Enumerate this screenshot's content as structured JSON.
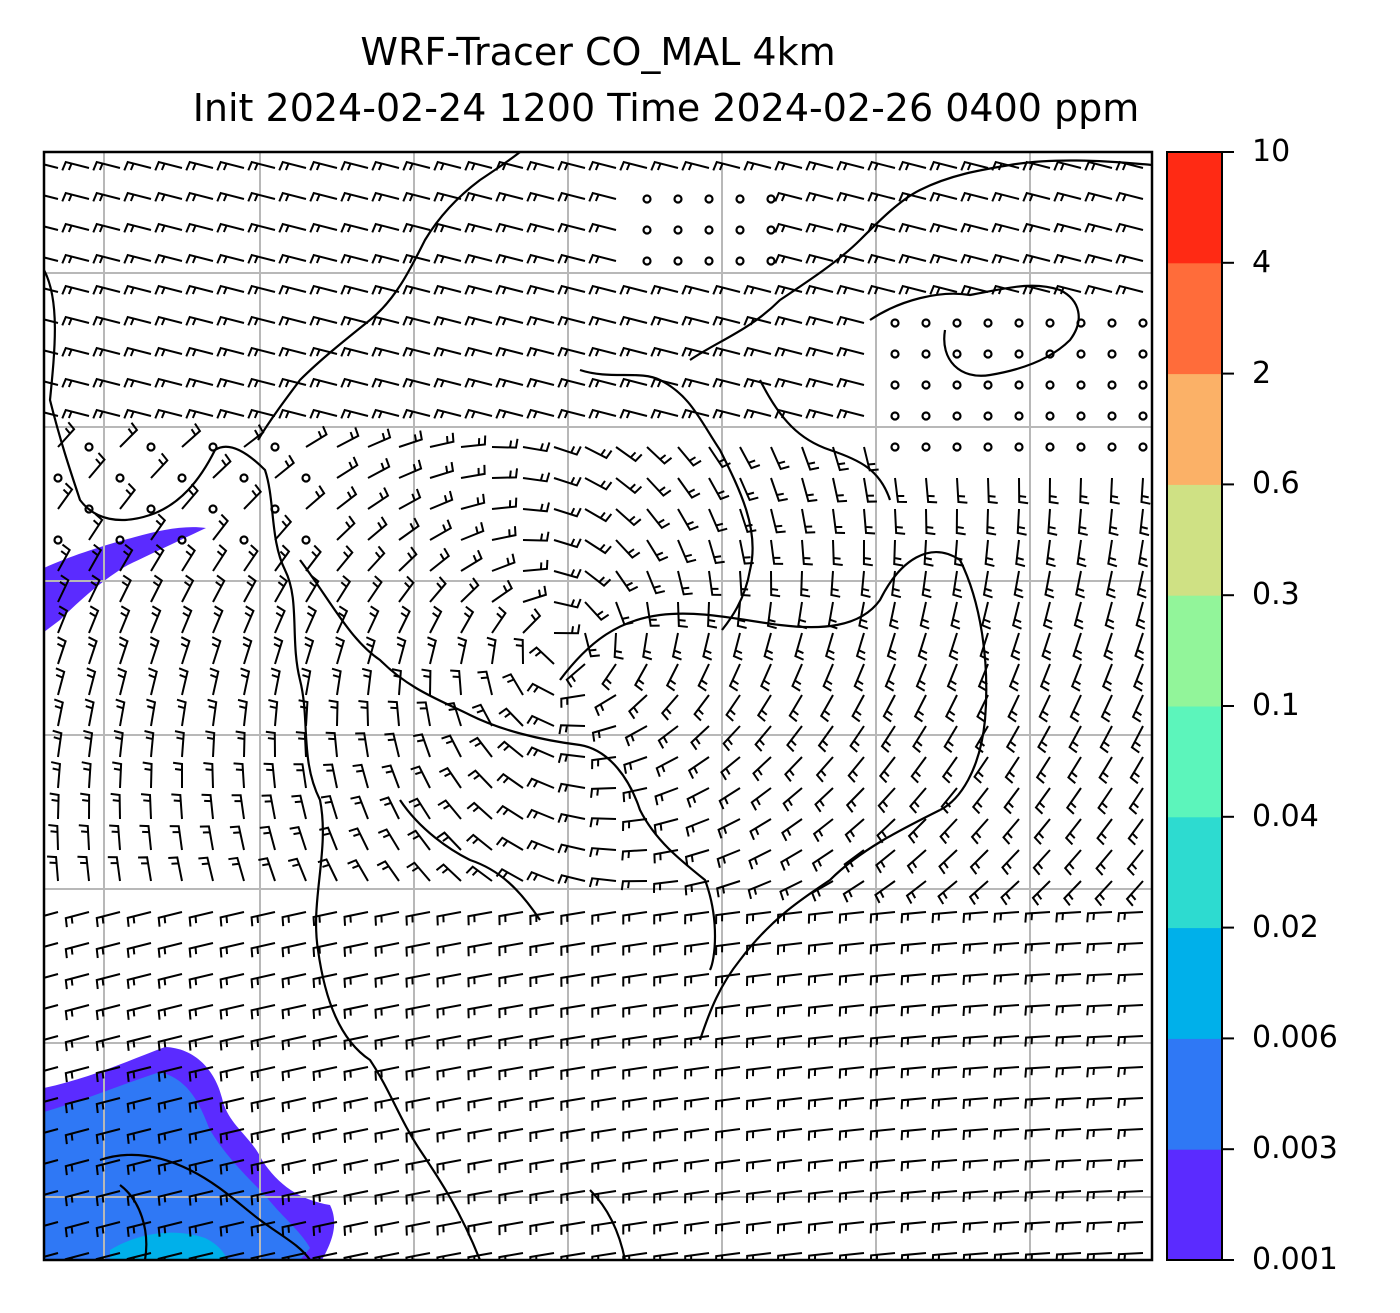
{
  "title": {
    "line1": "WRF-Tracer CO_MAL 4km",
    "line2": "Init 2024-02-24 1200 Time 2024-02-26 0400 ppm"
  },
  "colorbar": {
    "ticks": [
      "0.001",
      "0.003",
      "0.006",
      "0.02",
      "0.04",
      "0.1",
      "0.3",
      "0.6",
      "2",
      "4",
      "10"
    ],
    "colors": [
      "#5b2bff",
      "#2f78f5",
      "#00b0ea",
      "#2ddbd0",
      "#5cf5bb",
      "#92f59a",
      "#cfe184",
      "#fbb167",
      "#ff6c3a",
      "#ff2a14"
    ]
  },
  "map_style": {
    "gridlines": true,
    "coastlines": true,
    "wind_barbs": true
  }
}
